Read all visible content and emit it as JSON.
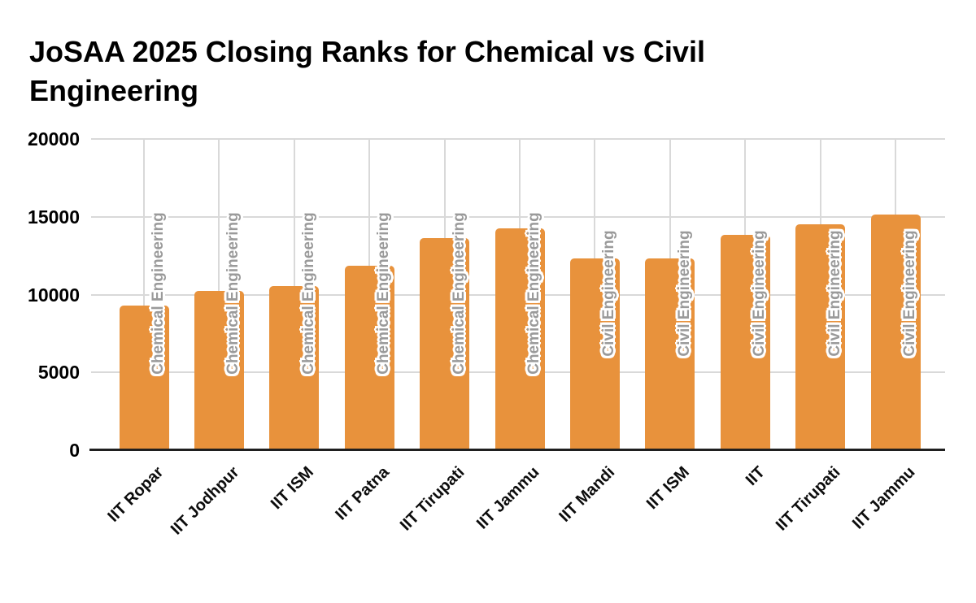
{
  "title": "JoSAA 2025 Closing Ranks for Chemical vs Civil Engineering",
  "chart_data": {
    "type": "bar",
    "title": "JoSAA 2025 Closing Ranks for Chemical vs Civil Engineering",
    "xlabel": "",
    "ylabel": "",
    "ylim": [
      0,
      20000
    ],
    "yticks": [
      0,
      5000,
      10000,
      15000,
      20000
    ],
    "grid": true,
    "legend_position": "none",
    "bar_color": "#E8923C",
    "bar_label_color": "#9A9A9A",
    "gridline_color": "#D9D9D9",
    "axis_line_color": "#1F1F1F",
    "categories": [
      "IIT Ropar",
      "IIT Jodhpur",
      "IIT ISM",
      "IIT Patna",
      "IIT Tirupati",
      "IIT Jammu",
      "IIT Mandi",
      "IIT ISM",
      "IIT",
      "IIT Tirupati",
      "IIT Jammu"
    ],
    "bars": [
      {
        "institute": "IIT Ropar",
        "branch": "Chemical Engineering",
        "closing_rank": 9270
      },
      {
        "institute": "IIT Jodhpur",
        "branch": "Chemical Engineering",
        "closing_rank": 10240
      },
      {
        "institute": "IIT ISM",
        "branch": "Chemical Engineering",
        "closing_rank": 10530
      },
      {
        "institute": "IIT Patna",
        "branch": "Chemical Engineering",
        "closing_rank": 11840
      },
      {
        "institute": "IIT Tirupati",
        "branch": "Chemical Engineering",
        "closing_rank": 13630
      },
      {
        "institute": "IIT Jammu",
        "branch": "Chemical Engineering",
        "closing_rank": 14240
      },
      {
        "institute": "IIT Mandi",
        "branch": "Civil Engineering",
        "closing_rank": 12330
      },
      {
        "institute": "IIT ISM",
        "branch": "Civil Engineering",
        "closing_rank": 12340
      },
      {
        "institute": "IIT",
        "branch": "Civil Engineering",
        "closing_rank": 13850
      },
      {
        "institute": "IIT Tirupati",
        "branch": "Civil Engineering",
        "closing_rank": 14500
      },
      {
        "institute": "IIT Jammu",
        "branch": "Civil Engineering",
        "closing_rank": 15140
      }
    ]
  }
}
